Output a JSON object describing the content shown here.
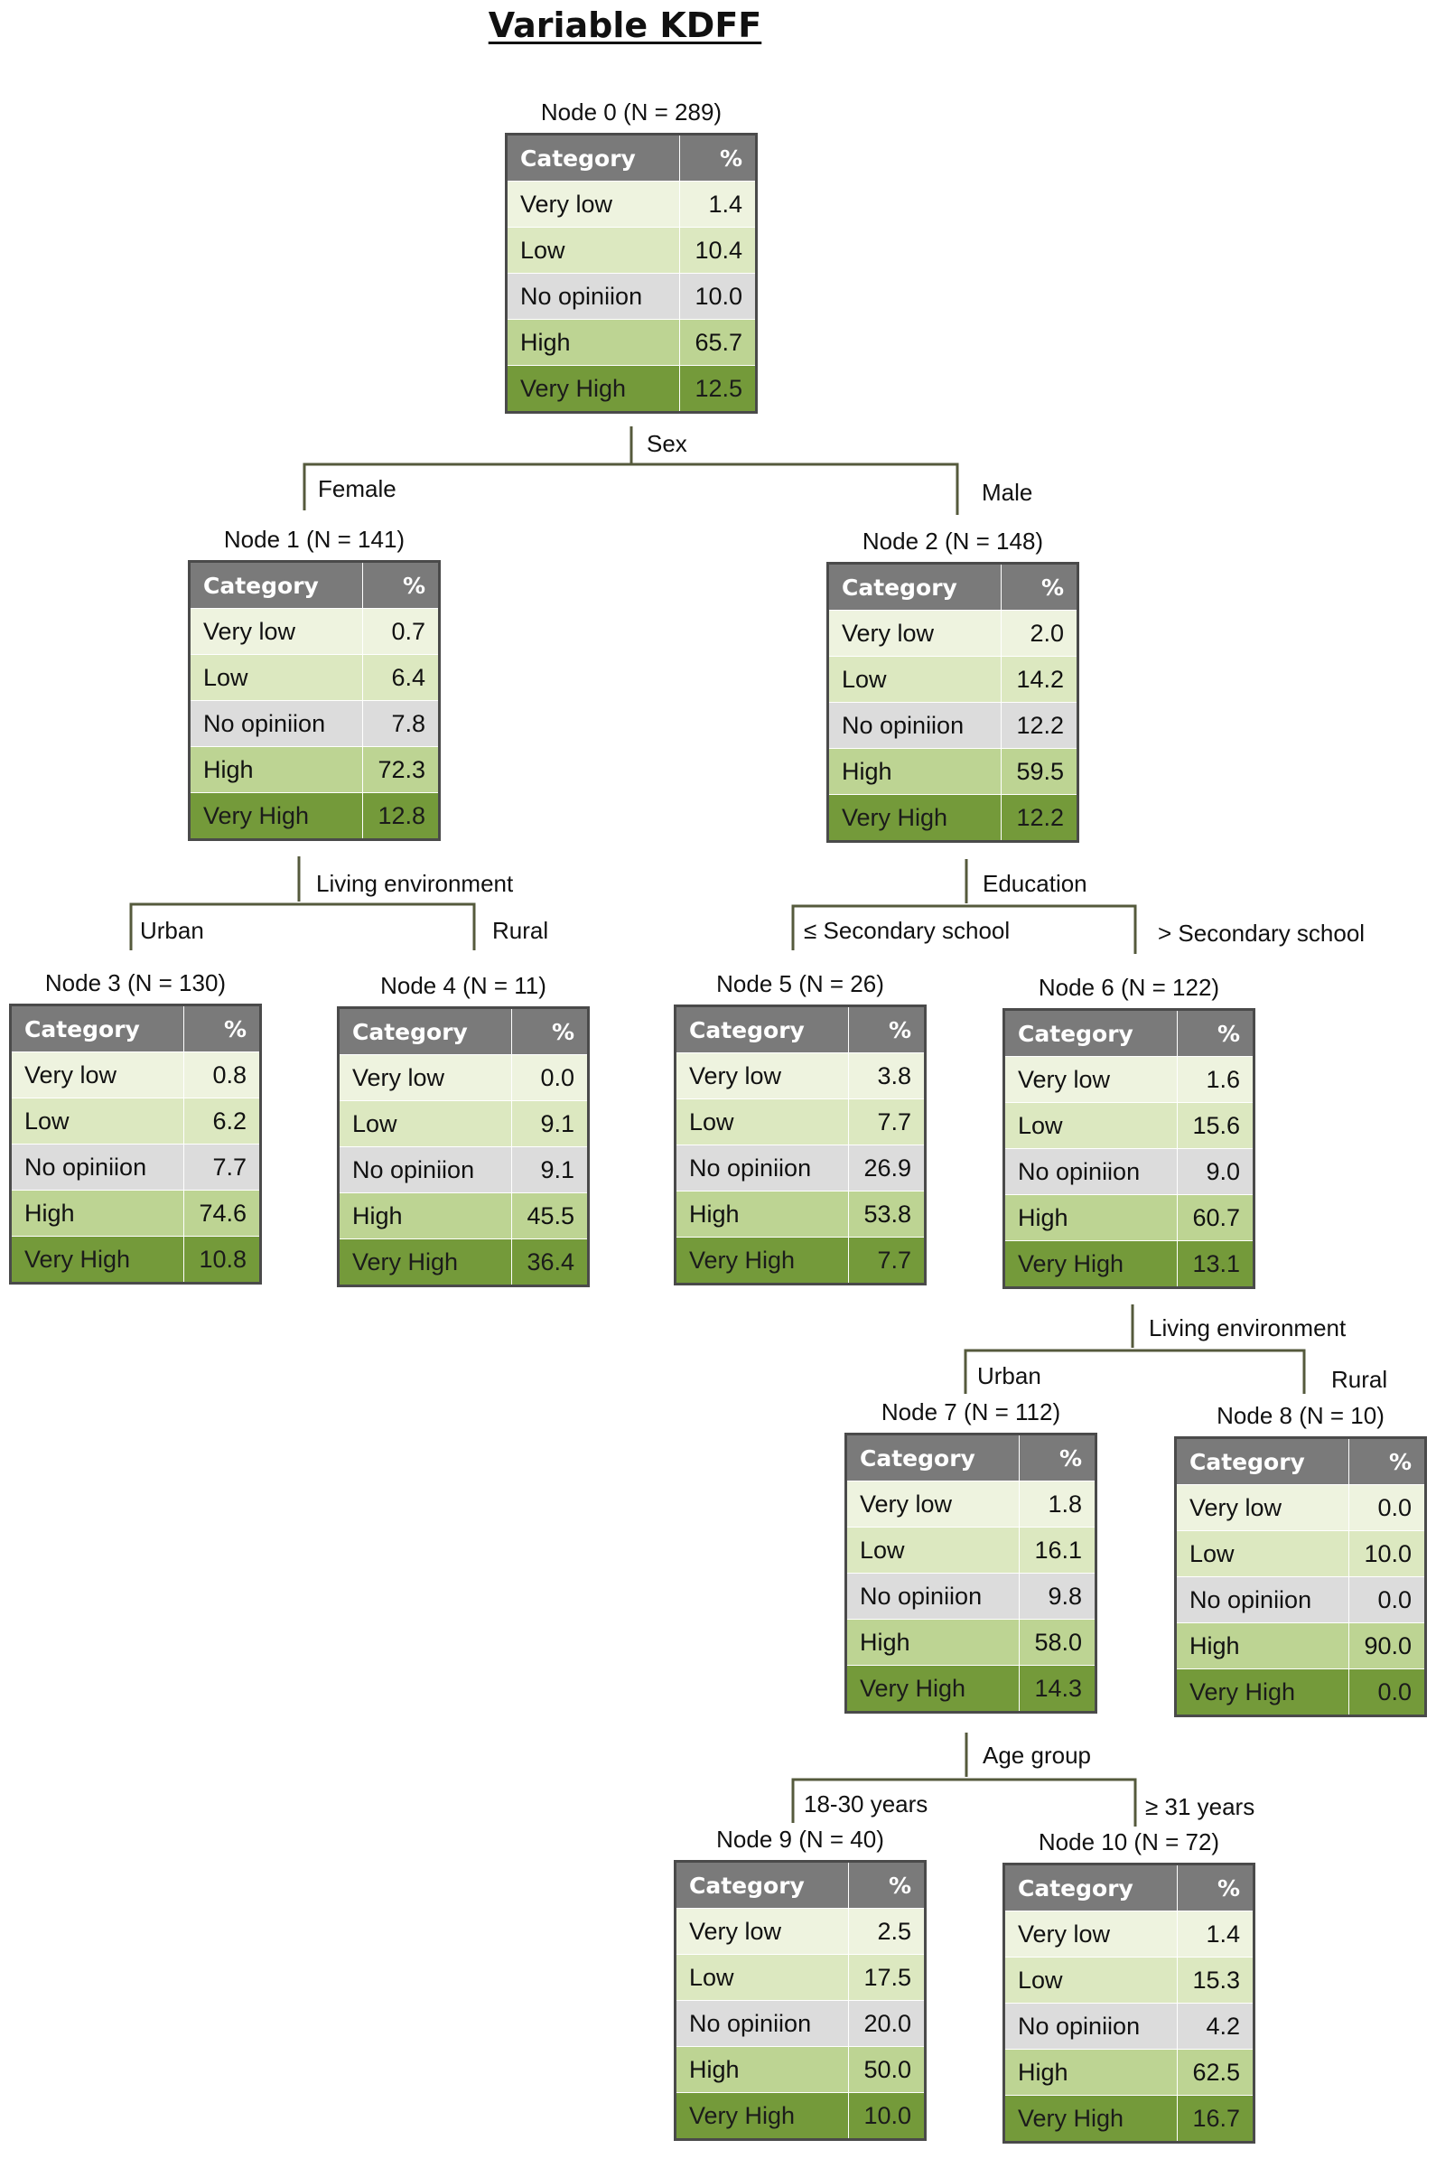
{
  "title": "Variable KDFF",
  "header": {
    "category": "Category",
    "percent": "%"
  },
  "categories": [
    "Very low",
    "Low",
    "No opiniion",
    "High",
    "Very High"
  ],
  "nodes": [
    {
      "label": "Node 0 (N = 289)",
      "values": [
        "1.4",
        "10.4",
        "10.0",
        "65.7",
        "12.5"
      ]
    },
    {
      "label": "Node 1 (N = 141)",
      "values": [
        "0.7",
        "6.4",
        "7.8",
        "72.3",
        "12.8"
      ]
    },
    {
      "label": "Node 2 (N = 148)",
      "values": [
        "2.0",
        "14.2",
        "12.2",
        "59.5",
        "12.2"
      ]
    },
    {
      "label": "Node 3 (N = 130)",
      "values": [
        "0.8",
        "6.2",
        "7.7",
        "74.6",
        "10.8"
      ]
    },
    {
      "label": "Node 4 (N = 11)",
      "values": [
        "0.0",
        "9.1",
        "9.1",
        "45.5",
        "36.4"
      ]
    },
    {
      "label": "Node 5 (N = 26)",
      "values": [
        "3.8",
        "7.7",
        "26.9",
        "53.8",
        "7.7"
      ]
    },
    {
      "label": "Node 6 (N = 122)",
      "values": [
        "1.6",
        "15.6",
        "9.0",
        "60.7",
        "13.1"
      ]
    },
    {
      "label": "Node 7 (N = 112)",
      "values": [
        "1.8",
        "16.1",
        "9.8",
        "58.0",
        "14.3"
      ]
    },
    {
      "label": "Node 8 (N = 10)",
      "values": [
        "0.0",
        "10.0",
        "0.0",
        "90.0",
        "0.0"
      ]
    },
    {
      "label": "Node 9 (N = 40)",
      "values": [
        "2.5",
        "17.5",
        "20.0",
        "50.0",
        "10.0"
      ]
    },
    {
      "label": "Node 10 (N = 72)",
      "values": [
        "1.4",
        "15.3",
        "4.2",
        "62.5",
        "16.7"
      ]
    }
  ],
  "splits": [
    {
      "variable": "Sex",
      "left": "Female",
      "right": "Male"
    },
    {
      "variable": "Living environment",
      "left": "Urban",
      "right": "Rural"
    },
    {
      "variable": "Education",
      "left": "≤ Secondary school",
      "right": "> Secondary school"
    },
    {
      "variable": "Living environment",
      "left": "Urban",
      "right": "Rural"
    },
    {
      "variable": "Age group",
      "left": "18-30 years",
      "right": "≥ 31 years"
    }
  ],
  "colors": {
    "header": "#7a7a7a",
    "very_low": "#eef3df",
    "low": "#dce8c0",
    "no_opinion": "#dcdcdc",
    "high": "#bdd493",
    "very_high": "#749a3a",
    "connector": "#555a3c"
  }
}
